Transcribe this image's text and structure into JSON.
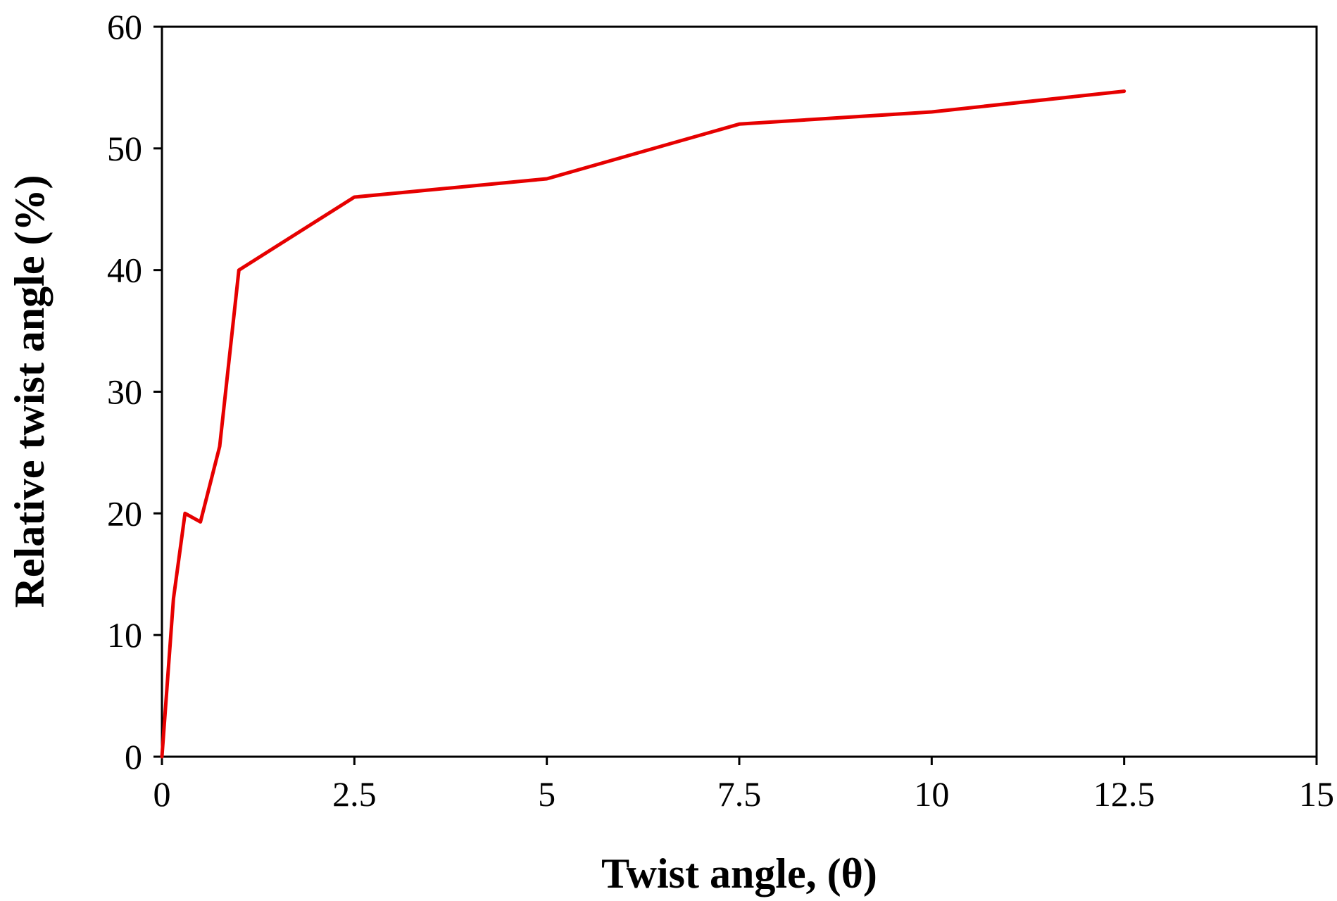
{
  "chart_data": {
    "type": "line",
    "title": "",
    "xlabel": "Twist angle, (θ)",
    "ylabel": "Relative twist angle (%)",
    "xlim": [
      0,
      15
    ],
    "ylim": [
      0,
      60
    ],
    "xticks": [
      0,
      2.5,
      5,
      7.5,
      10,
      12.5,
      15
    ],
    "xtick_labels": [
      "0",
      "2.5",
      "5",
      "7.5",
      "10",
      "12.5",
      "15"
    ],
    "yticks": [
      0,
      10,
      20,
      30,
      40,
      50,
      60
    ],
    "ytick_labels": [
      "0",
      "10",
      "20",
      "30",
      "40",
      "50",
      "60"
    ],
    "grid": false,
    "legend": "none",
    "series": [
      {
        "color": "#e60000",
        "x": [
          0,
          0.15,
          0.3,
          0.5,
          0.75,
          1.0,
          2.5,
          5.0,
          7.5,
          10.0,
          12.5
        ],
        "y": [
          0,
          13,
          20,
          19.3,
          25.5,
          40,
          46,
          47.5,
          52,
          53,
          54.7
        ]
      }
    ]
  }
}
